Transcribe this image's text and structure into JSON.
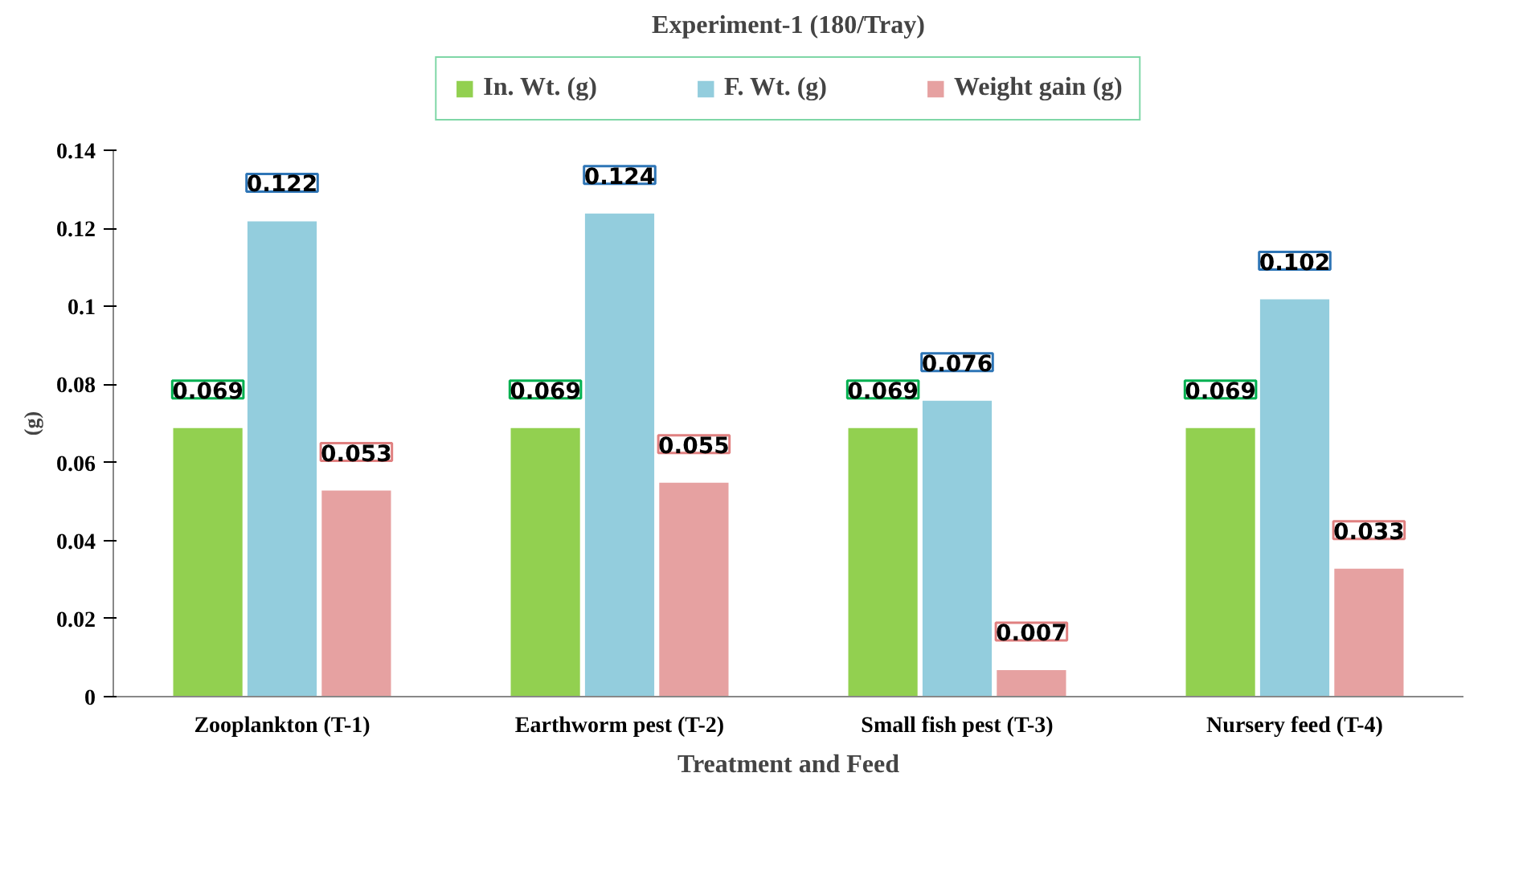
{
  "chart_data": {
    "type": "bar",
    "title": "Experiment-1 (180/Tray)",
    "xlabel": "Treatment and Feed",
    "ylabel": "(g)",
    "categories": [
      "Zooplankton (T-1)",
      "Earthworm pest (T-2)",
      "Small fish pest (T-3)",
      "Nursery feed (T-4)"
    ],
    "series": [
      {
        "name": "In. Wt. (g)",
        "color": "#92d050",
        "values": [
          0.069,
          0.069,
          0.069,
          0.069
        ]
      },
      {
        "name": "F. Wt. (g)",
        "color": "#93cddd",
        "values": [
          0.122,
          0.124,
          0.076,
          0.102
        ]
      },
      {
        "name": "Weight gain (g)",
        "color": "#e6a1a1",
        "values": [
          0.053,
          0.055,
          0.007,
          0.033
        ]
      }
    ],
    "ylim": [
      0,
      0.14
    ],
    "yticks": [
      0,
      0.02,
      0.04,
      0.06,
      0.08,
      0.1,
      0.12,
      0.14
    ],
    "grid": false,
    "legend": "top",
    "data_labels": true
  }
}
